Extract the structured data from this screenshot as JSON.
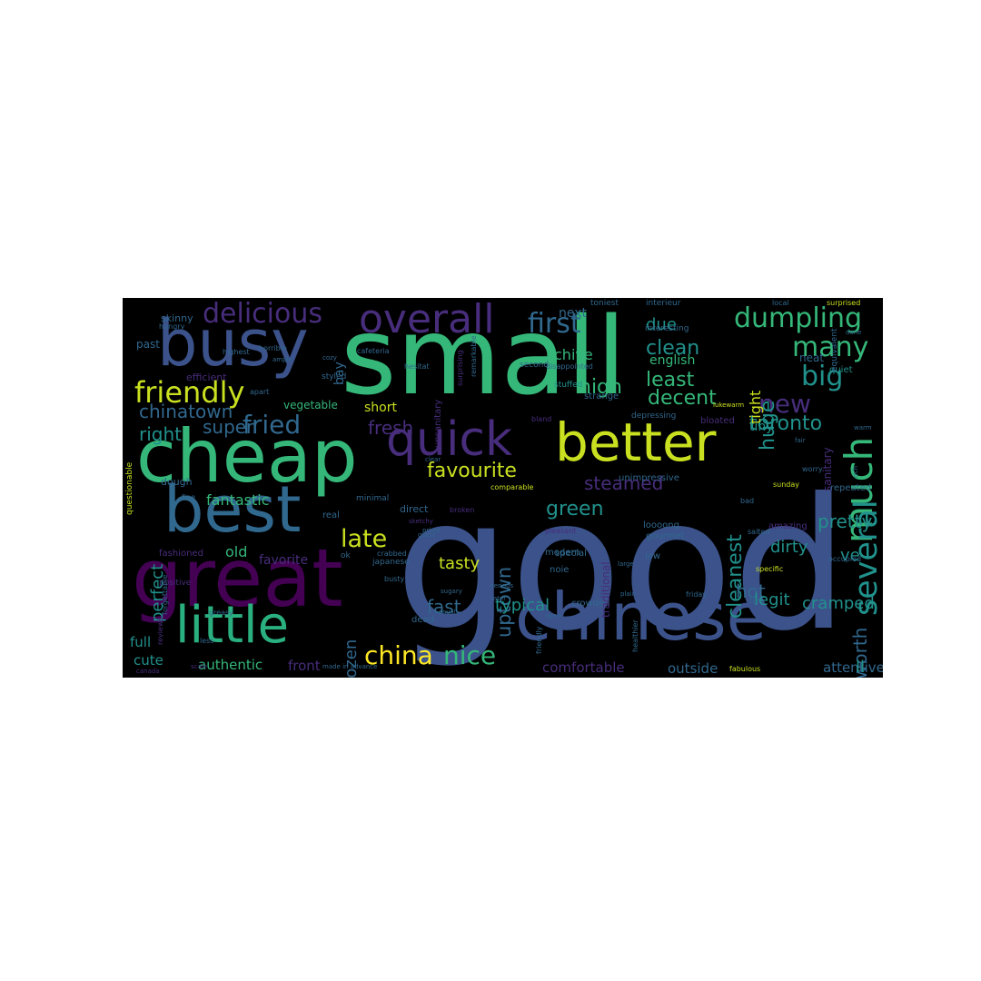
{
  "wordcloud": {
    "background": "#000000",
    "palette": {
      "blue": "#3b528b",
      "teal": "#21918c",
      "green": "#35b779",
      "lime": "#c9e020",
      "yellow": "#fde725",
      "purple": "#440154",
      "violet": "#472d7b",
      "slate": "#31688e",
      "aqua": "#2ab07f"
    },
    "words": [
      {
        "text": "good",
        "color": "#3b528b"
      },
      {
        "text": "small",
        "color": "#35b779"
      },
      {
        "text": "cheap",
        "color": "#35b779"
      },
      {
        "text": "great",
        "color": "#440154"
      },
      {
        "text": "chinese",
        "color": "#3b528b"
      },
      {
        "text": "busy",
        "color": "#3b528b"
      },
      {
        "text": "best",
        "color": "#31688e"
      },
      {
        "text": "better",
        "color": "#c9e020"
      },
      {
        "text": "quick",
        "color": "#472d7b"
      },
      {
        "text": "little",
        "color": "#2ab07f"
      },
      {
        "text": "overall",
        "color": "#472d7b"
      },
      {
        "text": "delicious",
        "color": "#472d7b"
      },
      {
        "text": "friendly",
        "color": "#c9e020"
      },
      {
        "text": "dumpling",
        "color": "#35b779"
      },
      {
        "text": "first",
        "color": "#31688e"
      },
      {
        "text": "many",
        "color": "#35b779"
      },
      {
        "text": "much",
        "color": "#35b779"
      },
      {
        "text": "big",
        "color": "#21918c"
      },
      {
        "text": "new",
        "color": "#472d7b"
      },
      {
        "text": "fried",
        "color": "#31688e"
      },
      {
        "text": "favourite",
        "color": "#c9e020"
      },
      {
        "text": "late",
        "color": "#c9e020"
      },
      {
        "text": "china",
        "color": "#fde725"
      },
      {
        "text": "nice",
        "color": "#35b779"
      },
      {
        "text": "several",
        "color": "#21918c"
      },
      {
        "text": "chinatown",
        "color": "#31688e"
      },
      {
        "text": "clean",
        "color": "#21918c"
      },
      {
        "text": "least",
        "color": "#35b779"
      },
      {
        "text": "high",
        "color": "#35b779"
      },
      {
        "text": "huge",
        "color": "#21918c"
      },
      {
        "text": "decent",
        "color": "#35b779"
      },
      {
        "text": "toronto",
        "color": "#21918c"
      },
      {
        "text": "cleanest",
        "color": "#21918c"
      },
      {
        "text": "steamed",
        "color": "#472d7b"
      },
      {
        "text": "uptown",
        "color": "#31688e"
      },
      {
        "text": "fresh",
        "color": "#472d7b"
      },
      {
        "text": "right",
        "color": "#21918c"
      },
      {
        "text": "super",
        "color": "#31688e"
      },
      {
        "text": "perfect",
        "color": "#21918c"
      },
      {
        "text": "fantastic",
        "color": "#35b779"
      },
      {
        "text": "green",
        "color": "#21918c"
      },
      {
        "text": "pretty",
        "color": "#21918c"
      },
      {
        "text": "dirty",
        "color": "#21918c"
      },
      {
        "text": "hot",
        "color": "#31688e"
      },
      {
        "text": "legit",
        "color": "#21918c"
      },
      {
        "text": "cramped",
        "color": "#21918c"
      },
      {
        "text": "worth",
        "color": "#31688e"
      },
      {
        "text": "frozen",
        "color": "#31688e"
      },
      {
        "text": "typical",
        "color": "#21918c"
      },
      {
        "text": "fast",
        "color": "#31688e"
      },
      {
        "text": "tasty",
        "color": "#c9e020"
      },
      {
        "text": "old",
        "color": "#35b779"
      },
      {
        "text": "favorite",
        "color": "#472d7b"
      },
      {
        "text": "full",
        "color": "#21918c"
      },
      {
        "text": "cute",
        "color": "#21918c"
      },
      {
        "text": "authentic",
        "color": "#35b779"
      },
      {
        "text": "front",
        "color": "#472d7b"
      },
      {
        "text": "comfortable",
        "color": "#472d7b"
      },
      {
        "text": "outside",
        "color": "#31688e"
      },
      {
        "text": "attentive",
        "color": "#31688e"
      },
      {
        "text": "ve",
        "color": "#21918c"
      },
      {
        "text": "ll",
        "color": "#21918c"
      },
      {
        "text": "chive",
        "color": "#35b779"
      },
      {
        "text": "due",
        "color": "#21918c"
      },
      {
        "text": "next",
        "color": "#31688e"
      },
      {
        "text": "tight",
        "color": "#c9e020"
      },
      {
        "text": "tiny",
        "color": "#21918c"
      },
      {
        "text": "english",
        "color": "#35b779"
      },
      {
        "text": "short",
        "color": "#c9e020"
      },
      {
        "text": "vegetable",
        "color": "#35b779"
      },
      {
        "text": "skinny",
        "color": "#31688e"
      },
      {
        "text": "past",
        "color": "#31688e"
      },
      {
        "text": "bay",
        "color": "#31688e"
      },
      {
        "text": "efficient",
        "color": "#472d7b"
      },
      {
        "text": "dough",
        "color": "#31688e"
      },
      {
        "text": "interieur",
        "color": "#31688e"
      },
      {
        "text": "toniest",
        "color": "#31688e"
      },
      {
        "text": "neat",
        "color": "#31688e"
      },
      {
        "text": "quiet",
        "color": "#21918c"
      },
      {
        "text": "stuffed",
        "color": "#21918c"
      },
      {
        "text": "second",
        "color": "#31688e"
      },
      {
        "text": "strange",
        "color": "#31688e"
      },
      {
        "text": "unsanitary",
        "color": "#472d7b"
      },
      {
        "text": "depressing",
        "color": "#31688e"
      },
      {
        "text": "bloated",
        "color": "#472d7b"
      },
      {
        "text": "unimpressive",
        "color": "#31688e"
      },
      {
        "text": "repeated",
        "color": "#31688e"
      },
      {
        "text": "modern",
        "color": "#31688e"
      },
      {
        "text": "gourmet",
        "color": "#31688e"
      },
      {
        "text": "amazing",
        "color": "#472d7b"
      },
      {
        "text": "special",
        "color": "#31688e"
      },
      {
        "text": "crowded",
        "color": "#31688e"
      },
      {
        "text": "dead",
        "color": "#31688e"
      },
      {
        "text": "minimal",
        "color": "#31688e"
      },
      {
        "text": "direct",
        "color": "#31688e"
      },
      {
        "text": "real",
        "color": "#31688e"
      },
      {
        "text": "traditional",
        "color": "#472d7b"
      },
      {
        "text": "loooong",
        "color": "#31688e"
      },
      {
        "text": "noie",
        "color": "#31688e"
      },
      {
        "text": "japanese",
        "color": "#31688e"
      },
      {
        "text": "sanitary",
        "color": "#472d7b"
      },
      {
        "text": "low",
        "color": "#31688e"
      },
      {
        "text": "styled",
        "color": "#31688e"
      },
      {
        "text": "interesting",
        "color": "#31688e"
      },
      {
        "text": "fashioned",
        "color": "#472d7b"
      },
      {
        "text": "questionable",
        "color": "#c9e020"
      },
      {
        "text": "positive",
        "color": "#472d7b"
      },
      {
        "text": "hungry",
        "color": "#31688e"
      },
      {
        "text": "surprised",
        "color": "#c9e020"
      },
      {
        "text": "equivalent",
        "color": "#31688e"
      },
      {
        "text": "fabulous",
        "color": "#c9e020"
      },
      {
        "text": "comparable",
        "color": "#c9e020"
      },
      {
        "text": "pleasant",
        "color": "#472d7b"
      },
      {
        "text": "broken",
        "color": "#472d7b"
      },
      {
        "text": "forgettable",
        "color": "#31688e"
      },
      {
        "text": "specific",
        "color": "#c9e020"
      },
      {
        "text": "occupied",
        "color": "#31688e"
      },
      {
        "text": "cafeteria",
        "color": "#31688e"
      },
      {
        "text": "crabbed",
        "color": "#31688e"
      },
      {
        "text": "disappointed",
        "color": "#31688e"
      },
      {
        "text": "hesitat",
        "color": "#31688e"
      },
      {
        "text": "surprising",
        "color": "#472d7b"
      },
      {
        "text": "remarkable",
        "color": "#31688e"
      },
      {
        "text": "healthier",
        "color": "#31688e"
      },
      {
        "text": "friendly",
        "color": "#31688e"
      },
      {
        "text": "horrible",
        "color": "#31688e"
      },
      {
        "text": "highest",
        "color": "#31688e"
      },
      {
        "text": "scale",
        "color": "#472d7b"
      },
      {
        "text": "canada",
        "color": "#472d7b"
      },
      {
        "text": "less",
        "color": "#31688e"
      },
      {
        "text": "greasy",
        "color": "#31688e"
      },
      {
        "text": "reviews",
        "color": "#472d7b"
      },
      {
        "text": "sunday",
        "color": "#c9e020"
      },
      {
        "text": "bad",
        "color": "#31688e"
      },
      {
        "text": "friday",
        "color": "#31688e"
      },
      {
        "text": "salted",
        "color": "#31688e"
      },
      {
        "text": "tai",
        "color": "#31688e"
      },
      {
        "text": "worry",
        "color": "#31688e"
      },
      {
        "text": "clear",
        "color": "#31688e"
      },
      {
        "text": "serious",
        "color": "#31688e"
      },
      {
        "text": "usual",
        "color": "#31688e"
      },
      {
        "text": "later",
        "color": "#31688e"
      },
      {
        "text": "open",
        "color": "#31688e"
      },
      {
        "text": "sugary",
        "color": "#31688e"
      },
      {
        "text": "busty",
        "color": "#31688e"
      },
      {
        "text": "prime",
        "color": "#31688e"
      },
      {
        "text": "sketchy",
        "color": "#472d7b"
      },
      {
        "text": "guest",
        "color": "#31688e"
      },
      {
        "text": "ok",
        "color": "#31688e"
      },
      {
        "text": "local",
        "color": "#31688e"
      },
      {
        "text": "made in advance",
        "color": "#31688e"
      },
      {
        "text": "bland",
        "color": "#472d7b"
      },
      {
        "text": "fine",
        "color": "#31688e"
      },
      {
        "text": "apart",
        "color": "#31688e"
      },
      {
        "text": "cozy",
        "color": "#31688e"
      },
      {
        "text": "ample",
        "color": "#31688e"
      },
      {
        "text": "warm",
        "color": "#31688e"
      },
      {
        "text": "rich",
        "color": "#31688e"
      },
      {
        "text": "fair",
        "color": "#31688e"
      },
      {
        "text": "lukewarm",
        "color": "#c9e020"
      },
      {
        "text": "large",
        "color": "#31688e"
      },
      {
        "text": "plain",
        "color": "#31688e"
      },
      {
        "text": "done",
        "color": "#31688e"
      }
    ]
  }
}
